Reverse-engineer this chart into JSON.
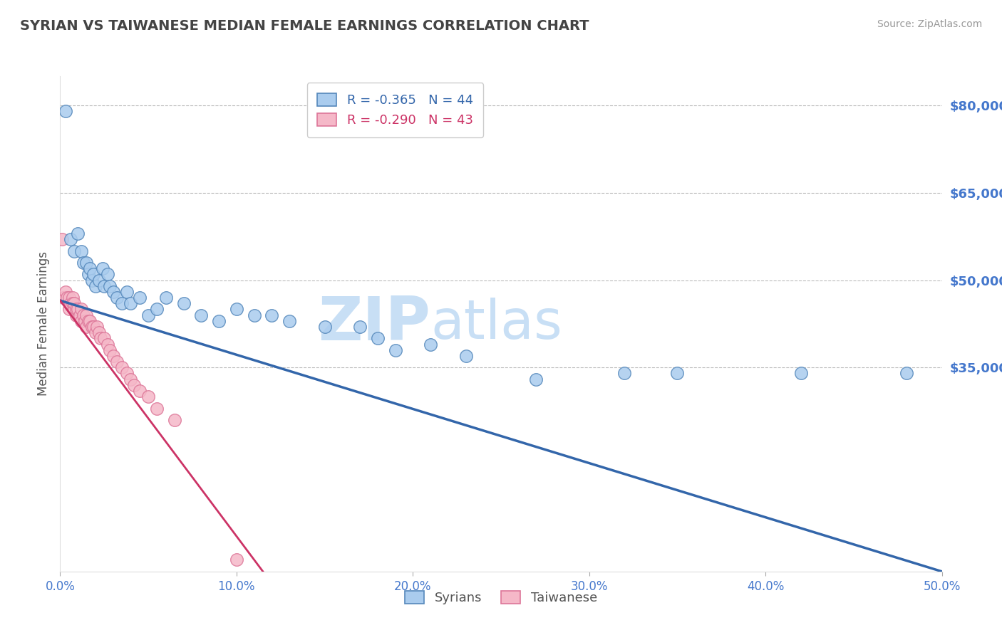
{
  "title": "SYRIAN VS TAIWANESE MEDIAN FEMALE EARNINGS CORRELATION CHART",
  "source": "Source: ZipAtlas.com",
  "ylabel": "Median Female Earnings",
  "xlabel": "",
  "xlim": [
    0.0,
    0.5
  ],
  "ylim": [
    0,
    85000
  ],
  "yticks": [
    0,
    35000,
    50000,
    65000,
    80000
  ],
  "ytick_labels": [
    "",
    "$35,000",
    "$50,000",
    "$65,000",
    "$80,000"
  ],
  "xticks": [
    0.0,
    0.1,
    0.2,
    0.3,
    0.4,
    0.5
  ],
  "xtick_labels": [
    "0.0%",
    "10.0%",
    "20.0%",
    "30.0%",
    "40.0%",
    "50.0%"
  ],
  "syrian_color": "#aaccee",
  "taiwanese_color": "#f5b8c8",
  "syrian_edge": "#5588bb",
  "taiwanese_edge": "#dd7799",
  "syrian_R": -0.365,
  "syrian_N": 44,
  "taiwanese_R": -0.29,
  "taiwanese_N": 43,
  "syrian_line_color": "#3366aa",
  "taiwanese_line_color": "#cc3366",
  "watermark_zip": "ZIP",
  "watermark_atlas": "atlas",
  "watermark_color_zip": "#c8dff5",
  "watermark_color_atlas": "#c8dff5",
  "background_color": "#ffffff",
  "grid_color": "#bbbbbb",
  "title_color": "#444444",
  "axis_label_color": "#555555",
  "tick_label_color": "#4477cc",
  "syrian_x": [
    0.003,
    0.006,
    0.008,
    0.01,
    0.012,
    0.013,
    0.015,
    0.016,
    0.017,
    0.018,
    0.019,
    0.02,
    0.022,
    0.024,
    0.025,
    0.027,
    0.028,
    0.03,
    0.032,
    0.035,
    0.038,
    0.04,
    0.045,
    0.05,
    0.055,
    0.06,
    0.07,
    0.08,
    0.09,
    0.1,
    0.11,
    0.12,
    0.13,
    0.15,
    0.17,
    0.18,
    0.19,
    0.21,
    0.23,
    0.27,
    0.32,
    0.35,
    0.42,
    0.48
  ],
  "syrian_y": [
    79000,
    57000,
    55000,
    58000,
    55000,
    53000,
    53000,
    51000,
    52000,
    50000,
    51000,
    49000,
    50000,
    52000,
    49000,
    51000,
    49000,
    48000,
    47000,
    46000,
    48000,
    46000,
    47000,
    44000,
    45000,
    47000,
    46000,
    44000,
    43000,
    45000,
    44000,
    44000,
    43000,
    42000,
    42000,
    40000,
    38000,
    39000,
    37000,
    33000,
    34000,
    34000,
    34000,
    34000
  ],
  "taiwanese_x": [
    0.001,
    0.002,
    0.003,
    0.004,
    0.005,
    0.005,
    0.006,
    0.007,
    0.007,
    0.008,
    0.008,
    0.009,
    0.009,
    0.01,
    0.011,
    0.012,
    0.012,
    0.013,
    0.014,
    0.015,
    0.015,
    0.016,
    0.017,
    0.018,
    0.019,
    0.02,
    0.021,
    0.022,
    0.023,
    0.025,
    0.027,
    0.028,
    0.03,
    0.032,
    0.035,
    0.038,
    0.04,
    0.042,
    0.045,
    0.05,
    0.055,
    0.065,
    0.1
  ],
  "taiwanese_y": [
    57000,
    47000,
    48000,
    47000,
    47000,
    45000,
    46000,
    47000,
    46000,
    45000,
    46000,
    44000,
    45000,
    45000,
    44000,
    45000,
    43000,
    44000,
    43000,
    44000,
    42000,
    43000,
    43000,
    42000,
    42000,
    41000,
    42000,
    41000,
    40000,
    40000,
    39000,
    38000,
    37000,
    36000,
    35000,
    34000,
    33000,
    32000,
    31000,
    30000,
    28000,
    26000,
    2000
  ],
  "syrian_line_x0": 0.0,
  "syrian_line_y0": 46500,
  "syrian_line_x1": 0.5,
  "syrian_line_y1": 0,
  "taiwanese_line_x0": 0.0,
  "taiwanese_line_y0": 46500,
  "taiwanese_line_x1": 0.115,
  "taiwanese_line_y1": 0
}
